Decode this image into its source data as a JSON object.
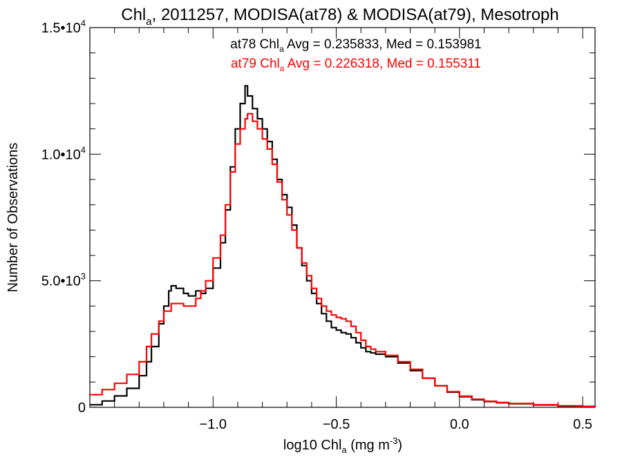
{
  "chart_data": {
    "type": "line",
    "title": {
      "prefix": "Chl",
      "sub": "a",
      "suffix": ", 2011257, MODISA(at78) & MODISA(at79), Mesotroph"
    },
    "xlabel": {
      "prefix": "log10 Chl",
      "sub": "a",
      "unit_pre": " (mg m",
      "unit_sup": "-3",
      "unit_post": ")"
    },
    "ylabel": "Number of Observations",
    "xlim": [
      -1.5,
      0.55
    ],
    "ylim": [
      0,
      15000
    ],
    "xticks": [
      {
        "value": -1.0,
        "label": "−1.0"
      },
      {
        "value": -0.5,
        "label": "−0.5"
      },
      {
        "value": 0.0,
        "label": "0.0"
      },
      {
        "value": 0.5,
        "label": "0.5"
      }
    ],
    "yticks": [
      {
        "value": 0,
        "label": "0"
      },
      {
        "value": 5000,
        "label": "5.0•10",
        "sup": "3"
      },
      {
        "value": 10000,
        "label": "1.0•10",
        "sup": "4"
      },
      {
        "value": 15000,
        "label": "1.5•10",
        "sup": "4"
      }
    ],
    "annotations": [
      {
        "pre": "at78 Chl",
        "sub": "a",
        "post": " Avg = 0.235833, Med = 0.153981",
        "color": "#000000"
      },
      {
        "pre": "at79 Chl",
        "sub": "a",
        "post": " Avg = 0.226318, Med = 0.155311",
        "color": "#ff0000"
      }
    ],
    "series": [
      {
        "color": "#000000",
        "points": [
          [
            -1.5,
            100
          ],
          [
            -1.45,
            250
          ],
          [
            -1.4,
            450
          ],
          [
            -1.35,
            750
          ],
          [
            -1.3,
            1250
          ],
          [
            -1.27,
            1800
          ],
          [
            -1.25,
            2400
          ],
          [
            -1.22,
            3300
          ],
          [
            -1.2,
            4000
          ],
          [
            -1.18,
            4600
          ],
          [
            -1.17,
            4800
          ],
          [
            -1.15,
            4700
          ],
          [
            -1.12,
            4500
          ],
          [
            -1.1,
            4400
          ],
          [
            -1.07,
            4600
          ],
          [
            -1.05,
            4500
          ],
          [
            -1.03,
            4700
          ],
          [
            -1.0,
            5500
          ],
          [
            -0.97,
            6500
          ],
          [
            -0.95,
            7800
          ],
          [
            -0.93,
            9500
          ],
          [
            -0.91,
            11000
          ],
          [
            -0.89,
            12000
          ],
          [
            -0.87,
            12700
          ],
          [
            -0.86,
            12300
          ],
          [
            -0.84,
            11800
          ],
          [
            -0.82,
            11400
          ],
          [
            -0.8,
            11000
          ],
          [
            -0.78,
            10500
          ],
          [
            -0.76,
            9800
          ],
          [
            -0.74,
            9000
          ],
          [
            -0.72,
            8400
          ],
          [
            -0.7,
            7900
          ],
          [
            -0.68,
            7200
          ],
          [
            -0.66,
            6300
          ],
          [
            -0.64,
            5600
          ],
          [
            -0.62,
            5000
          ],
          [
            -0.6,
            4500
          ],
          [
            -0.58,
            4100
          ],
          [
            -0.56,
            3700
          ],
          [
            -0.54,
            3400
          ],
          [
            -0.52,
            3150
          ],
          [
            -0.5,
            3050
          ],
          [
            -0.48,
            2950
          ],
          [
            -0.46,
            2900
          ],
          [
            -0.44,
            2750
          ],
          [
            -0.42,
            2550
          ],
          [
            -0.4,
            2350
          ],
          [
            -0.38,
            2200
          ],
          [
            -0.36,
            2150
          ],
          [
            -0.34,
            2100
          ],
          [
            -0.3,
            2000
          ],
          [
            -0.25,
            1750
          ],
          [
            -0.2,
            1450
          ],
          [
            -0.15,
            1150
          ],
          [
            -0.1,
            850
          ],
          [
            -0.05,
            600
          ],
          [
            0.0,
            420
          ],
          [
            0.05,
            300
          ],
          [
            0.1,
            230
          ],
          [
            0.15,
            180
          ],
          [
            0.2,
            140
          ],
          [
            0.3,
            90
          ],
          [
            0.4,
            50
          ],
          [
            0.5,
            30
          ],
          [
            0.55,
            20
          ]
        ]
      },
      {
        "color": "#ff0000",
        "points": [
          [
            -1.5,
            500
          ],
          [
            -1.45,
            700
          ],
          [
            -1.4,
            950
          ],
          [
            -1.35,
            1300
          ],
          [
            -1.3,
            1800
          ],
          [
            -1.27,
            2400
          ],
          [
            -1.25,
            2900
          ],
          [
            -1.22,
            3400
          ],
          [
            -1.2,
            3800
          ],
          [
            -1.17,
            4100
          ],
          [
            -1.15,
            4100
          ],
          [
            -1.12,
            4000
          ],
          [
            -1.1,
            4000
          ],
          [
            -1.07,
            4300
          ],
          [
            -1.05,
            4600
          ],
          [
            -1.03,
            5000
          ],
          [
            -1.0,
            5900
          ],
          [
            -0.97,
            6800
          ],
          [
            -0.95,
            8000
          ],
          [
            -0.93,
            9300
          ],
          [
            -0.91,
            10400
          ],
          [
            -0.89,
            11000
          ],
          [
            -0.87,
            11400
          ],
          [
            -0.86,
            11600
          ],
          [
            -0.84,
            11300
          ],
          [
            -0.82,
            11000
          ],
          [
            -0.8,
            10600
          ],
          [
            -0.78,
            10200
          ],
          [
            -0.76,
            9600
          ],
          [
            -0.74,
            8900
          ],
          [
            -0.72,
            8200
          ],
          [
            -0.7,
            7600
          ],
          [
            -0.68,
            7000
          ],
          [
            -0.66,
            6300
          ],
          [
            -0.64,
            5700
          ],
          [
            -0.62,
            5200
          ],
          [
            -0.6,
            4700
          ],
          [
            -0.58,
            4300
          ],
          [
            -0.56,
            4000
          ],
          [
            -0.54,
            3800
          ],
          [
            -0.52,
            3650
          ],
          [
            -0.5,
            3550
          ],
          [
            -0.48,
            3500
          ],
          [
            -0.46,
            3400
          ],
          [
            -0.44,
            3200
          ],
          [
            -0.42,
            2950
          ],
          [
            -0.4,
            2650
          ],
          [
            -0.38,
            2400
          ],
          [
            -0.36,
            2300
          ],
          [
            -0.34,
            2200
          ],
          [
            -0.3,
            2050
          ],
          [
            -0.25,
            1800
          ],
          [
            -0.2,
            1500
          ],
          [
            -0.15,
            1150
          ],
          [
            -0.1,
            850
          ],
          [
            -0.05,
            620
          ],
          [
            0.0,
            440
          ],
          [
            0.05,
            320
          ],
          [
            0.1,
            240
          ],
          [
            0.15,
            190
          ],
          [
            0.2,
            150
          ],
          [
            0.3,
            100
          ],
          [
            0.4,
            60
          ],
          [
            0.5,
            35
          ],
          [
            0.55,
            25
          ]
        ]
      }
    ]
  }
}
